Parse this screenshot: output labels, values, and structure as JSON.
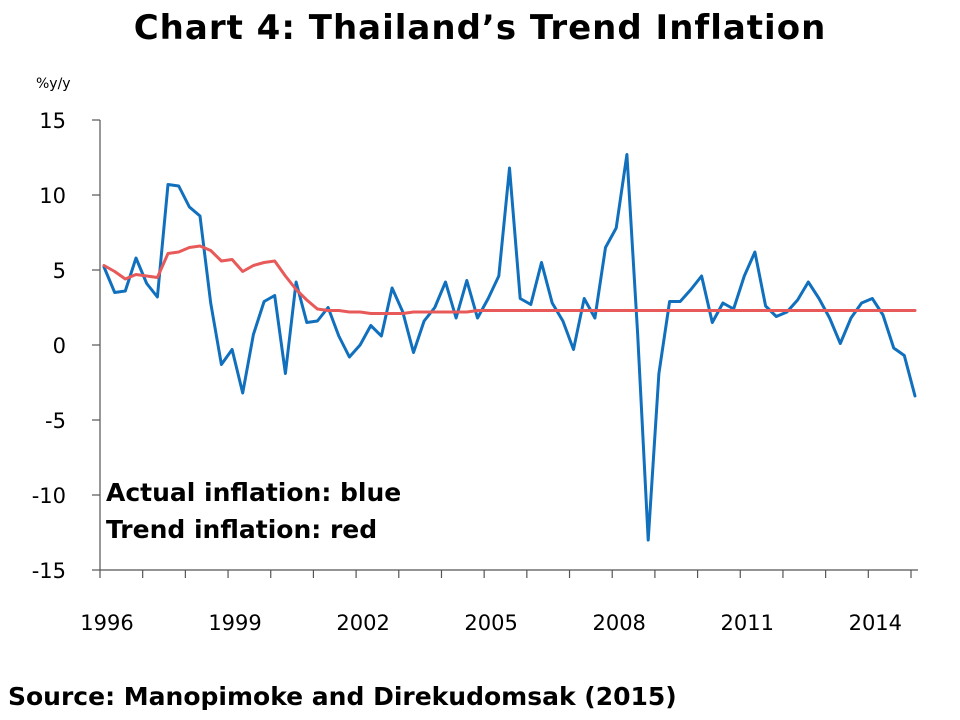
{
  "title": "Chart 4: Thailand’s Trend Inflation",
  "source": "Source:  Manopimoke and Direkudomsak (2015)",
  "chart_data": {
    "type": "line",
    "title": "Chart 4: Thailand’s Trend Inflation",
    "ylabel": "%y/y",
    "xlabel": "",
    "ylim": [
      -15,
      15
    ],
    "yticks": [
      15,
      10,
      5,
      0,
      -5,
      -10,
      -15
    ],
    "xlim": [
      1996.0,
      2015.0
    ],
    "xticks": [
      "1996",
      "1999",
      "2002",
      "2005",
      "2008",
      "2011",
      "2014"
    ],
    "grid": false,
    "legend_lines": [
      "Actual inflation: blue",
      "Trend inflation: red"
    ],
    "colors": {
      "actual": "#1170BD",
      "trend": "#E85A5A",
      "axis": "#555555"
    },
    "series": [
      {
        "name": "Actual inflation",
        "color": "#1170BD",
        "x": [
          1996.0,
          1996.25,
          1996.5,
          1996.75,
          1997.0,
          1997.25,
          1997.5,
          1997.75,
          1998.0,
          1998.25,
          1998.5,
          1998.75,
          1999.0,
          1999.25,
          1999.5,
          1999.75,
          2000.0,
          2000.25,
          2000.5,
          2000.75,
          2001.0,
          2001.25,
          2001.5,
          2001.75,
          2002.0,
          2002.25,
          2002.5,
          2002.75,
          2003.0,
          2003.25,
          2003.5,
          2003.75,
          2004.0,
          2004.25,
          2004.5,
          2004.75,
          2005.0,
          2005.25,
          2005.5,
          2005.75,
          2006.0,
          2006.25,
          2006.5,
          2006.75,
          2007.0,
          2007.25,
          2007.5,
          2007.75,
          2008.0,
          2008.25,
          2008.5,
          2008.75,
          2009.0,
          2009.25,
          2009.5,
          2009.75,
          2010.0,
          2010.25,
          2010.5,
          2010.75,
          2011.0,
          2011.25,
          2011.5,
          2011.75,
          2012.0,
          2012.25,
          2012.5,
          2012.75,
          2013.0,
          2013.25,
          2013.5,
          2013.75,
          2014.0,
          2014.25,
          2014.5,
          2014.75,
          2015.0
        ],
        "values": [
          5.2,
          3.5,
          3.6,
          5.8,
          4.1,
          3.2,
          10.7,
          10.6,
          9.2,
          8.6,
          2.8,
          -1.3,
          -0.3,
          -3.2,
          0.7,
          2.9,
          3.3,
          -1.9,
          4.2,
          1.5,
          1.6,
          2.5,
          0.6,
          -0.8,
          0.0,
          1.3,
          0.6,
          3.8,
          2.2,
          -0.5,
          1.6,
          2.5,
          4.2,
          1.8,
          4.3,
          1.8,
          3.1,
          4.6,
          11.8,
          3.1,
          2.7,
          5.5,
          2.8,
          1.6,
          -0.3,
          3.1,
          1.8,
          6.5,
          7.8,
          12.7,
          0.8,
          -13.0,
          -1.9,
          2.9,
          2.9,
          3.7,
          4.6,
          1.5,
          2.8,
          2.4,
          4.6,
          6.2,
          2.6,
          1.9,
          2.2,
          3.0,
          4.2,
          3.1,
          1.8,
          0.1,
          1.8,
          2.8,
          3.1,
          2.0,
          -0.2,
          -0.7,
          -3.4
        ]
      },
      {
        "name": "Trend inflation",
        "color": "#E85A5A",
        "x": [
          1996.0,
          1996.25,
          1996.5,
          1996.75,
          1997.0,
          1997.25,
          1997.5,
          1997.75,
          1998.0,
          1998.25,
          1998.5,
          1998.75,
          1999.0,
          1999.25,
          1999.5,
          1999.75,
          2000.0,
          2000.25,
          2000.5,
          2000.75,
          2001.0,
          2001.25,
          2001.5,
          2001.75,
          2002.0,
          2002.25,
          2002.5,
          2002.75,
          2003.0,
          2003.25,
          2003.5,
          2003.75,
          2004.0,
          2004.25,
          2004.5,
          2004.75,
          2005.0,
          2005.5,
          2006.0,
          2006.5,
          2007.0,
          2007.5,
          2008.0,
          2008.5,
          2009.0,
          2009.5,
          2010.0,
          2010.5,
          2011.0,
          2011.5,
          2012.0,
          2012.5,
          2013.0,
          2013.5,
          2014.0,
          2014.5,
          2015.0
        ],
        "values": [
          5.3,
          4.9,
          4.4,
          4.7,
          4.6,
          4.5,
          6.1,
          6.2,
          6.5,
          6.6,
          6.3,
          5.6,
          5.7,
          4.9,
          5.3,
          5.5,
          5.6,
          4.6,
          3.7,
          3.0,
          2.4,
          2.3,
          2.3,
          2.2,
          2.2,
          2.1,
          2.1,
          2.1,
          2.1,
          2.2,
          2.2,
          2.2,
          2.2,
          2.2,
          2.2,
          2.3,
          2.3,
          2.3,
          2.3,
          2.3,
          2.3,
          2.3,
          2.3,
          2.3,
          2.3,
          2.3,
          2.3,
          2.3,
          2.3,
          2.3,
          2.3,
          2.3,
          2.3,
          2.3,
          2.3,
          2.3,
          2.3
        ]
      }
    ]
  }
}
